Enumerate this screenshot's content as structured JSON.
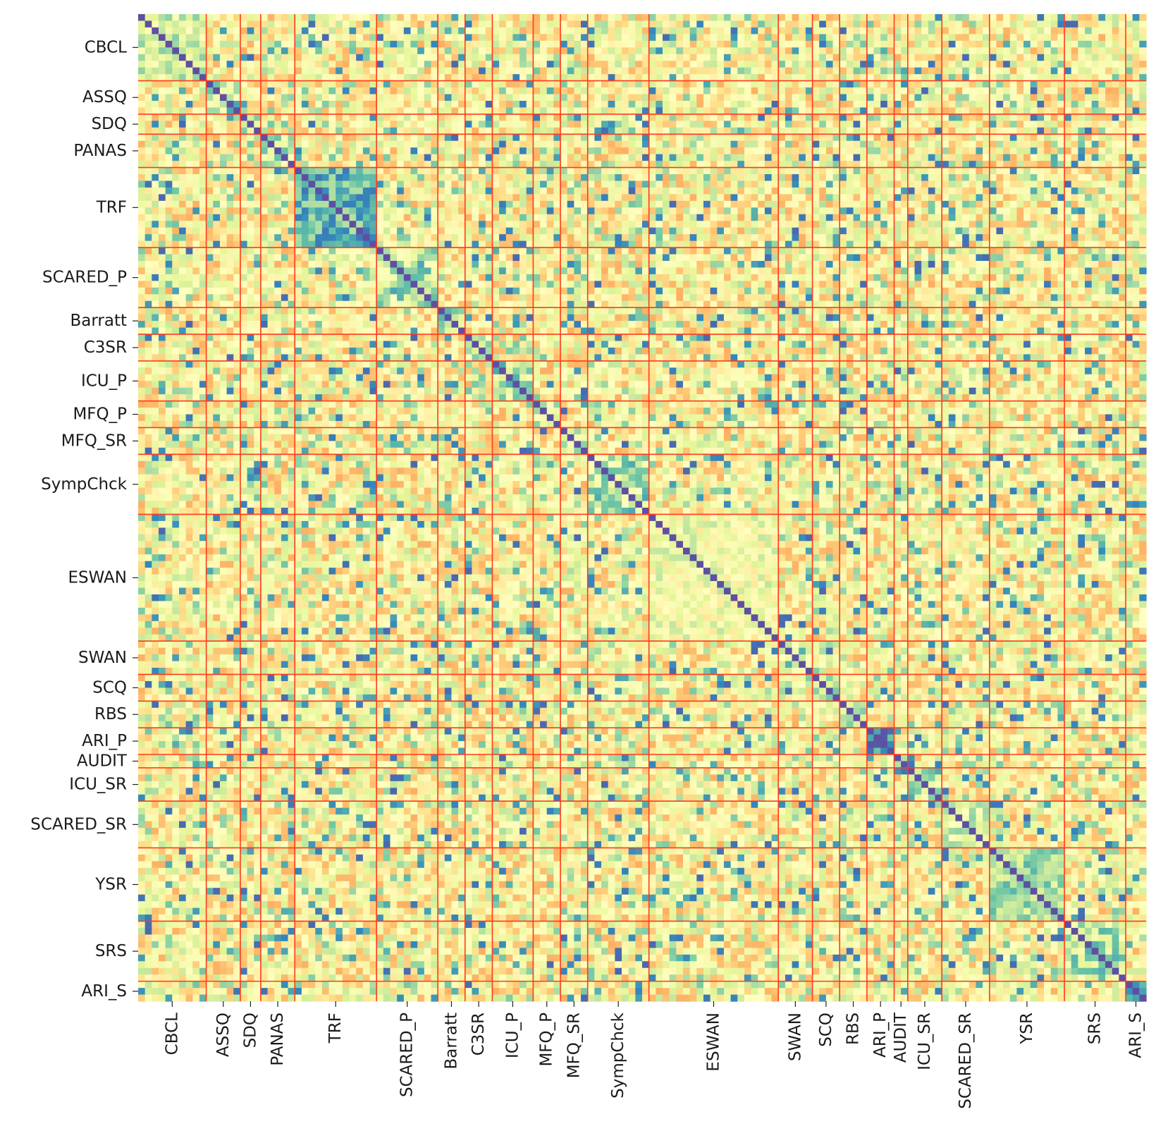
{
  "chart_data": {
    "type": "heatmap",
    "title": "",
    "xlabel": "",
    "ylabel": "",
    "colormap": "Spectral (diverging: red → orange → yellow → green → blue)",
    "colorbar": false,
    "block_separator_color": "#ff3b1f",
    "diagonal_value": 1.0,
    "blocks": [
      {
        "name": "CBCL",
        "size": 10
      },
      {
        "name": "ASSQ",
        "size": 5
      },
      {
        "name": "SDQ",
        "size": 3
      },
      {
        "name": "PANAS",
        "size": 5
      },
      {
        "name": "TRF",
        "size": 12
      },
      {
        "name": "SCARED_P",
        "size": 9
      },
      {
        "name": "Barratt",
        "size": 4
      },
      {
        "name": "C3SR",
        "size": 4
      },
      {
        "name": "ICU_P",
        "size": 6
      },
      {
        "name": "MFQ_P",
        "size": 4
      },
      {
        "name": "MFQ_SR",
        "size": 4
      },
      {
        "name": "SympChck",
        "size": 9
      },
      {
        "name": "ESWAN",
        "size": 19
      },
      {
        "name": "SWAN",
        "size": 5
      },
      {
        "name": "SCQ",
        "size": 4
      },
      {
        "name": "RBS",
        "size": 4
      },
      {
        "name": "ARI_P",
        "size": 4
      },
      {
        "name": "AUDIT",
        "size": 2
      },
      {
        "name": "ICU_SR",
        "size": 5
      },
      {
        "name": "SCARED_SR",
        "size": 7
      },
      {
        "name": "YSR",
        "size": 11
      },
      {
        "name": "SRS",
        "size": 9
      },
      {
        "name": "ARI_S",
        "size": 3
      }
    ]
  }
}
